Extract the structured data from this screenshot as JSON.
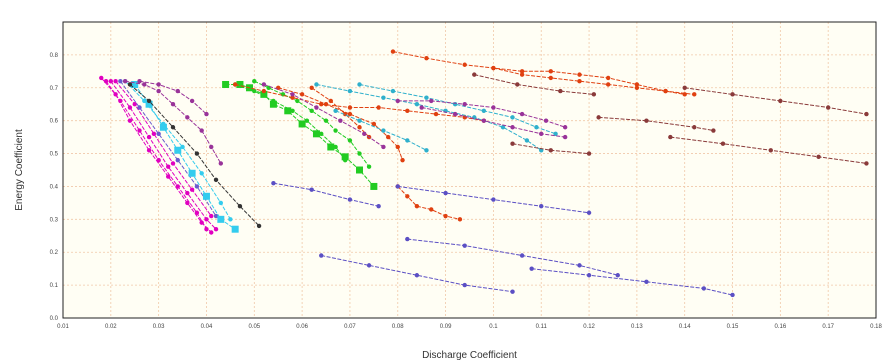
{
  "chart_data": {
    "type": "scatter",
    "title": "",
    "xlabel": "Discharge Coefficient",
    "ylabel": "Energy Coefficient",
    "xlim": [
      0.01,
      0.18
    ],
    "ylim": [
      0.0,
      0.9
    ],
    "grid": true,
    "legend": "none",
    "x_ticks": [
      "0.01",
      "0.02",
      "0.03",
      "0.04",
      "0.05",
      "0.06",
      "0.07",
      "0.08",
      "0.09",
      "0.1",
      "0.11",
      "0.12",
      "0.13",
      "0.14",
      "0.15",
      "0.16",
      "0.17",
      "0.18"
    ],
    "y_ticks": [
      "0.0",
      "0.1",
      "0.2",
      "0.3",
      "0.4",
      "0.5",
      "0.6",
      "0.7",
      "0.8"
    ],
    "colors": {
      "plot_background": "#fffef4",
      "grid": "#f0c8a8",
      "frame": "#222222"
    },
    "series": [
      {
        "color": "#e000c0",
        "values": [
          [
            0.018,
            0.73
          ],
          [
            0.021,
            0.68
          ],
          [
            0.024,
            0.6
          ],
          [
            0.028,
            0.51
          ],
          [
            0.032,
            0.43
          ],
          [
            0.036,
            0.35
          ],
          [
            0.039,
            0.29
          ],
          [
            0.041,
            0.26
          ]
        ]
      },
      {
        "color": "#e000c0",
        "values": [
          [
            0.019,
            0.72
          ],
          [
            0.022,
            0.66
          ],
          [
            0.026,
            0.57
          ],
          [
            0.03,
            0.48
          ],
          [
            0.034,
            0.4
          ],
          [
            0.038,
            0.32
          ],
          [
            0.04,
            0.27
          ]
        ]
      },
      {
        "color": "#e000c0",
        "values": [
          [
            0.02,
            0.72
          ],
          [
            0.024,
            0.64
          ],
          [
            0.028,
            0.55
          ],
          [
            0.032,
            0.46
          ],
          [
            0.036,
            0.38
          ],
          [
            0.04,
            0.3
          ],
          [
            0.042,
            0.27
          ]
        ]
      },
      {
        "color": "#e000c0",
        "values": [
          [
            0.021,
            0.72
          ],
          [
            0.025,
            0.65
          ],
          [
            0.029,
            0.56
          ],
          [
            0.033,
            0.47
          ],
          [
            0.037,
            0.39
          ],
          [
            0.041,
            0.31
          ]
        ]
      },
      {
        "color": "#6a5acd",
        "values": [
          [
            0.022,
            0.72
          ],
          [
            0.026,
            0.64
          ],
          [
            0.03,
            0.56
          ],
          [
            0.034,
            0.48
          ],
          [
            0.038,
            0.4
          ],
          [
            0.042,
            0.31
          ]
        ]
      },
      {
        "color": "#33ccee",
        "marker": "square",
        "values": [
          [
            0.025,
            0.71
          ],
          [
            0.028,
            0.65
          ],
          [
            0.031,
            0.58
          ],
          [
            0.034,
            0.51
          ],
          [
            0.037,
            0.44
          ],
          [
            0.04,
            0.37
          ],
          [
            0.043,
            0.3
          ],
          [
            0.046,
            0.27
          ]
        ]
      },
      {
        "color": "#33ccee",
        "values": [
          [
            0.023,
            0.72
          ],
          [
            0.027,
            0.66
          ],
          [
            0.031,
            0.59
          ],
          [
            0.035,
            0.52
          ],
          [
            0.039,
            0.44
          ],
          [
            0.043,
            0.35
          ],
          [
            0.045,
            0.3
          ]
        ]
      },
      {
        "color": "#333333",
        "values": [
          [
            0.024,
            0.71
          ],
          [
            0.028,
            0.66
          ],
          [
            0.033,
            0.58
          ],
          [
            0.038,
            0.5
          ],
          [
            0.042,
            0.42
          ],
          [
            0.047,
            0.34
          ],
          [
            0.051,
            0.28
          ]
        ]
      },
      {
        "color": "#993399",
        "values": [
          [
            0.023,
            0.72
          ],
          [
            0.027,
            0.71
          ],
          [
            0.03,
            0.69
          ],
          [
            0.033,
            0.65
          ],
          [
            0.036,
            0.61
          ],
          [
            0.039,
            0.57
          ],
          [
            0.041,
            0.52
          ],
          [
            0.043,
            0.47
          ]
        ]
      },
      {
        "color": "#993399",
        "values": [
          [
            0.026,
            0.72
          ],
          [
            0.03,
            0.71
          ],
          [
            0.034,
            0.69
          ],
          [
            0.037,
            0.66
          ],
          [
            0.04,
            0.62
          ]
        ]
      },
      {
        "color": "#22cc22",
        "marker": "square",
        "values": [
          [
            0.044,
            0.71
          ],
          [
            0.047,
            0.71
          ],
          [
            0.049,
            0.7
          ],
          [
            0.052,
            0.68
          ],
          [
            0.054,
            0.65
          ],
          [
            0.057,
            0.63
          ],
          [
            0.06,
            0.59
          ],
          [
            0.063,
            0.56
          ],
          [
            0.066,
            0.52
          ],
          [
            0.069,
            0.49
          ],
          [
            0.072,
            0.45
          ],
          [
            0.075,
            0.4
          ]
        ]
      },
      {
        "color": "#22cc22",
        "values": [
          [
            0.05,
            0.72
          ],
          [
            0.053,
            0.7
          ],
          [
            0.056,
            0.68
          ],
          [
            0.059,
            0.66
          ],
          [
            0.062,
            0.63
          ],
          [
            0.065,
            0.6
          ],
          [
            0.067,
            0.57
          ],
          [
            0.07,
            0.54
          ],
          [
            0.072,
            0.5
          ],
          [
            0.074,
            0.46
          ]
        ]
      },
      {
        "color": "#22cc22",
        "values": [
          [
            0.046,
            0.71
          ],
          [
            0.05,
            0.69
          ],
          [
            0.054,
            0.66
          ],
          [
            0.058,
            0.63
          ],
          [
            0.061,
            0.6
          ],
          [
            0.064,
            0.56
          ],
          [
            0.067,
            0.52
          ],
          [
            0.069,
            0.48
          ]
        ]
      },
      {
        "color": "#e04010",
        "values": [
          [
            0.046,
            0.71
          ],
          [
            0.052,
            0.69
          ],
          [
            0.058,
            0.67
          ],
          [
            0.064,
            0.65
          ],
          [
            0.07,
            0.64
          ],
          [
            0.076,
            0.64
          ],
          [
            0.082,
            0.63
          ],
          [
            0.088,
            0.62
          ],
          [
            0.094,
            0.61
          ],
          [
            0.098,
            0.6
          ]
        ]
      },
      {
        "color": "#e04010",
        "values": [
          [
            0.055,
            0.7
          ],
          [
            0.06,
            0.68
          ],
          [
            0.065,
            0.65
          ],
          [
            0.07,
            0.62
          ],
          [
            0.075,
            0.59
          ],
          [
            0.078,
            0.55
          ],
          [
            0.08,
            0.52
          ],
          [
            0.081,
            0.48
          ]
        ]
      },
      {
        "color": "#e04010",
        "values": [
          [
            0.062,
            0.7
          ],
          [
            0.066,
            0.66
          ],
          [
            0.069,
            0.62
          ],
          [
            0.072,
            0.58
          ],
          [
            0.074,
            0.55
          ]
        ]
      },
      {
        "color": "#e04010",
        "values": [
          [
            0.08,
            0.4
          ],
          [
            0.082,
            0.37
          ],
          [
            0.084,
            0.34
          ],
          [
            0.087,
            0.33
          ],
          [
            0.09,
            0.31
          ],
          [
            0.093,
            0.3
          ]
        ]
      },
      {
        "color": "#e04010",
        "values": [
          [
            0.079,
            0.81
          ],
          [
            0.086,
            0.79
          ],
          [
            0.094,
            0.77
          ],
          [
            0.1,
            0.76
          ],
          [
            0.106,
            0.75
          ],
          [
            0.112,
            0.75
          ],
          [
            0.118,
            0.74
          ],
          [
            0.124,
            0.73
          ],
          [
            0.13,
            0.71
          ],
          [
            0.136,
            0.69
          ],
          [
            0.142,
            0.68
          ]
        ]
      },
      {
        "color": "#e04010",
        "values": [
          [
            0.1,
            0.76
          ],
          [
            0.106,
            0.74
          ],
          [
            0.112,
            0.73
          ],
          [
            0.118,
            0.72
          ],
          [
            0.124,
            0.71
          ],
          [
            0.13,
            0.7
          ],
          [
            0.136,
            0.69
          ],
          [
            0.14,
            0.68
          ]
        ]
      },
      {
        "color": "#2fb0cc",
        "values": [
          [
            0.063,
            0.71
          ],
          [
            0.07,
            0.69
          ],
          [
            0.077,
            0.67
          ],
          [
            0.084,
            0.65
          ],
          [
            0.09,
            0.63
          ],
          [
            0.096,
            0.61
          ],
          [
            0.102,
            0.58
          ],
          [
            0.107,
            0.54
          ],
          [
            0.11,
            0.51
          ]
        ]
      },
      {
        "color": "#2fb0cc",
        "values": [
          [
            0.072,
            0.71
          ],
          [
            0.079,
            0.69
          ],
          [
            0.086,
            0.67
          ],
          [
            0.092,
            0.65
          ],
          [
            0.098,
            0.63
          ],
          [
            0.104,
            0.61
          ],
          [
            0.109,
            0.58
          ],
          [
            0.113,
            0.56
          ]
        ]
      },
      {
        "color": "#2fb0cc",
        "values": [
          [
            0.067,
            0.63
          ],
          [
            0.072,
            0.6
          ],
          [
            0.077,
            0.57
          ],
          [
            0.082,
            0.54
          ],
          [
            0.086,
            0.51
          ]
        ]
      },
      {
        "color": "#993399",
        "values": [
          [
            0.052,
            0.71
          ],
          [
            0.058,
            0.68
          ],
          [
            0.063,
            0.64
          ],
          [
            0.068,
            0.6
          ],
          [
            0.073,
            0.56
          ],
          [
            0.077,
            0.52
          ]
        ]
      },
      {
        "color": "#993399",
        "values": [
          [
            0.08,
            0.66
          ],
          [
            0.087,
            0.66
          ],
          [
            0.094,
            0.65
          ],
          [
            0.1,
            0.64
          ],
          [
            0.106,
            0.62
          ],
          [
            0.111,
            0.6
          ],
          [
            0.115,
            0.58
          ]
        ]
      },
      {
        "color": "#993399",
        "values": [
          [
            0.085,
            0.64
          ],
          [
            0.092,
            0.62
          ],
          [
            0.098,
            0.6
          ],
          [
            0.104,
            0.58
          ],
          [
            0.11,
            0.56
          ],
          [
            0.115,
            0.55
          ]
        ]
      },
      {
        "color": "#8a3a3a",
        "values": [
          [
            0.096,
            0.74
          ],
          [
            0.105,
            0.71
          ],
          [
            0.114,
            0.69
          ],
          [
            0.121,
            0.68
          ]
        ]
      },
      {
        "color": "#8a3a3a",
        "values": [
          [
            0.14,
            0.7
          ],
          [
            0.15,
            0.68
          ],
          [
            0.16,
            0.66
          ],
          [
            0.17,
            0.64
          ],
          [
            0.178,
            0.62
          ]
        ]
      },
      {
        "color": "#8a3a3a",
        "values": [
          [
            0.122,
            0.61
          ],
          [
            0.132,
            0.6
          ],
          [
            0.142,
            0.58
          ],
          [
            0.146,
            0.57
          ]
        ]
      },
      {
        "color": "#8a3a3a",
        "values": [
          [
            0.137,
            0.55
          ],
          [
            0.148,
            0.53
          ],
          [
            0.158,
            0.51
          ],
          [
            0.168,
            0.49
          ],
          [
            0.178,
            0.47
          ]
        ]
      },
      {
        "color": "#8a3a3a",
        "values": [
          [
            0.104,
            0.53
          ],
          [
            0.112,
            0.51
          ],
          [
            0.12,
            0.5
          ]
        ]
      },
      {
        "color": "#5b4fc4",
        "values": [
          [
            0.054,
            0.41
          ],
          [
            0.062,
            0.39
          ],
          [
            0.07,
            0.36
          ],
          [
            0.076,
            0.34
          ]
        ]
      },
      {
        "color": "#5b4fc4",
        "values": [
          [
            0.08,
            0.4
          ],
          [
            0.09,
            0.38
          ],
          [
            0.1,
            0.36
          ],
          [
            0.11,
            0.34
          ],
          [
            0.12,
            0.32
          ]
        ]
      },
      {
        "color": "#5b4fc4",
        "values": [
          [
            0.064,
            0.19
          ],
          [
            0.074,
            0.16
          ],
          [
            0.084,
            0.13
          ],
          [
            0.094,
            0.1
          ],
          [
            0.104,
            0.08
          ]
        ]
      },
      {
        "color": "#5b4fc4",
        "values": [
          [
            0.082,
            0.24
          ],
          [
            0.094,
            0.22
          ],
          [
            0.106,
            0.19
          ],
          [
            0.118,
            0.16
          ],
          [
            0.126,
            0.13
          ]
        ]
      },
      {
        "color": "#5b4fc4",
        "values": [
          [
            0.108,
            0.15
          ],
          [
            0.12,
            0.13
          ],
          [
            0.132,
            0.11
          ],
          [
            0.144,
            0.09
          ],
          [
            0.15,
            0.07
          ]
        ]
      }
    ]
  }
}
